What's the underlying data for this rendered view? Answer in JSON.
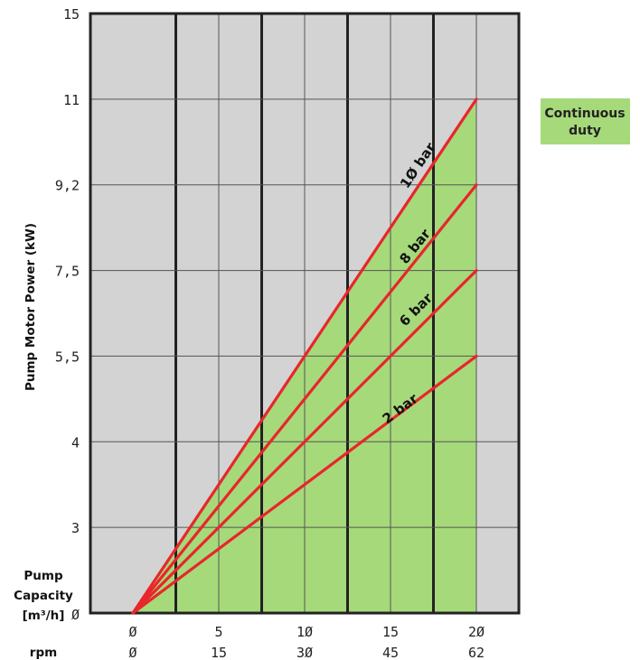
{
  "chart_data": {
    "type": "line",
    "ylabel": "Pump Motor Power (kW)",
    "xlabel_lines": [
      "Pump",
      "Capacity",
      "[m³/h]"
    ],
    "rpm_label": "rpm",
    "x_ticks": [
      0,
      5,
      10,
      15,
      20
    ],
    "x_tick_labels": [
      "Ø",
      "5",
      "1Ø",
      "15",
      "2Ø"
    ],
    "rpm_ticks": [
      "Ø",
      "15",
      "3Ø",
      "45",
      "62"
    ],
    "y_origin_label": "Ø",
    "y_ticks": [
      "3",
      "4",
      "5,5",
      "7,5",
      "9,2",
      "11",
      "15"
    ],
    "xlim": [
      0,
      20
    ],
    "grid": true,
    "series": [
      {
        "name": "1Ø bar",
        "x": [
          0,
          20
        ],
        "y": [
          0,
          11
        ]
      },
      {
        "name": "8 bar",
        "x": [
          0,
          20
        ],
        "y": [
          0,
          9.2
        ]
      },
      {
        "name": "6 bar",
        "x": [
          0,
          20
        ],
        "y": [
          0,
          7.5
        ]
      },
      {
        "name": "2 bar",
        "x": [
          0,
          20
        ],
        "y": [
          0,
          5.5
        ]
      }
    ],
    "legend": {
      "text_lines": [
        "Continuous",
        "duty"
      ],
      "color": "#a6d97a",
      "placement": "right"
    },
    "colors": {
      "background": "#d3d3d3",
      "fill": "#a6d97a",
      "line": "#e8262b",
      "grid": "#222222"
    }
  }
}
